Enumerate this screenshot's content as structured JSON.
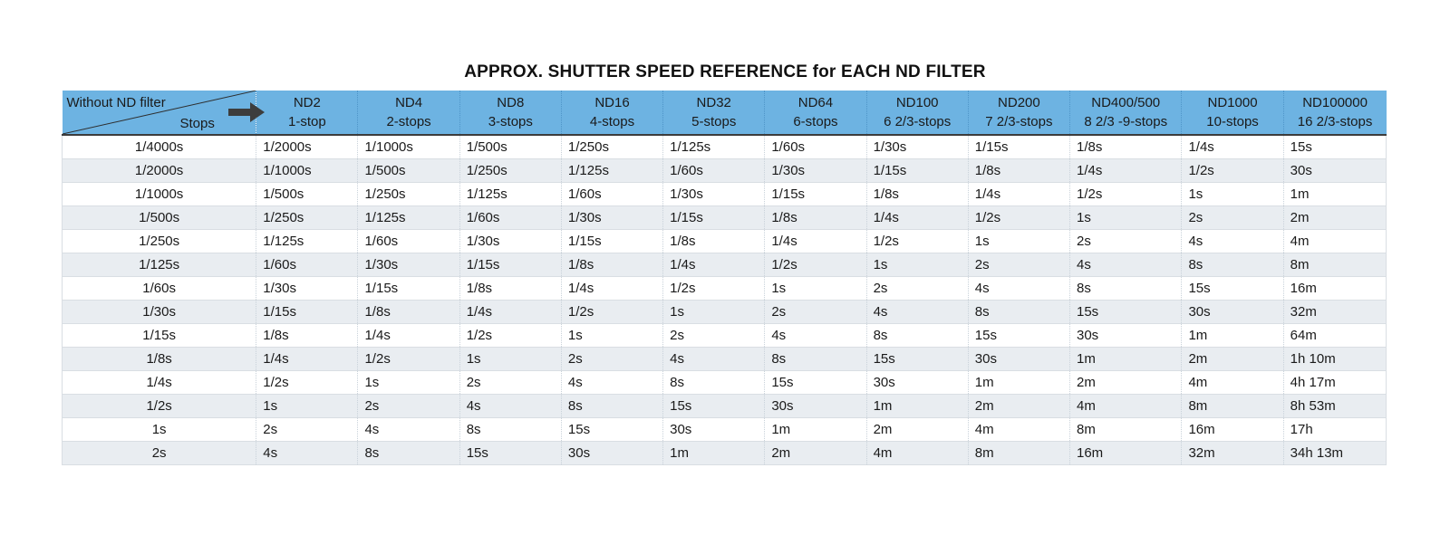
{
  "title": "APPROX. SHUTTER SPEED REFERENCE for EACH ND FILTER",
  "colors": {
    "header_background": "#6db3e2",
    "stripe_background": "#e9edf1",
    "arrow": "#3d3d3d"
  },
  "header": {
    "corner_top": "Without ND filter",
    "corner_bottom": "Stops",
    "corner_icon": "right-arrow-icon",
    "filters": [
      {
        "name": "ND2",
        "stops": "1-stop"
      },
      {
        "name": "ND4",
        "stops": "2-stops"
      },
      {
        "name": "ND8",
        "stops": "3-stops"
      },
      {
        "name": "ND16",
        "stops": "4-stops"
      },
      {
        "name": "ND32",
        "stops": "5-stops"
      },
      {
        "name": "ND64",
        "stops": "6-stops"
      },
      {
        "name": "ND100",
        "stops": "6 2/3-stops"
      },
      {
        "name": "ND200",
        "stops": "7 2/3-stops"
      },
      {
        "name": "ND400/500",
        "stops": "8 2/3 -9-stops"
      },
      {
        "name": "ND1000",
        "stops": "10-stops"
      },
      {
        "name": "ND100000",
        "stops": "16 2/3-stops"
      }
    ]
  },
  "rows": [
    [
      "1/4000s",
      "1/2000s",
      "1/1000s",
      "1/500s",
      "1/250s",
      "1/125s",
      "1/60s",
      "1/30s",
      "1/15s",
      "1/8s",
      "1/4s",
      "15s"
    ],
    [
      "1/2000s",
      "1/1000s",
      "1/500s",
      "1/250s",
      "1/125s",
      "1/60s",
      "1/30s",
      "1/15s",
      "1/8s",
      "1/4s",
      "1/2s",
      "30s"
    ],
    [
      "1/1000s",
      "1/500s",
      "1/250s",
      "1/125s",
      "1/60s",
      "1/30s",
      "1/15s",
      "1/8s",
      "1/4s",
      "1/2s",
      "1s",
      "1m"
    ],
    [
      "1/500s",
      "1/250s",
      "1/125s",
      "1/60s",
      "1/30s",
      "1/15s",
      "1/8s",
      "1/4s",
      "1/2s",
      "1s",
      "2s",
      "2m"
    ],
    [
      "1/250s",
      "1/125s",
      "1/60s",
      "1/30s",
      "1/15s",
      "1/8s",
      "1/4s",
      "1/2s",
      "1s",
      "2s",
      "4s",
      "4m"
    ],
    [
      "1/125s",
      "1/60s",
      "1/30s",
      "1/15s",
      "1/8s",
      "1/4s",
      "1/2s",
      "1s",
      "2s",
      "4s",
      "8s",
      "8m"
    ],
    [
      "1/60s",
      "1/30s",
      "1/15s",
      "1/8s",
      "1/4s",
      "1/2s",
      "1s",
      "2s",
      "4s",
      "8s",
      "15s",
      "16m"
    ],
    [
      "1/30s",
      "1/15s",
      "1/8s",
      "1/4s",
      "1/2s",
      "1s",
      "2s",
      "4s",
      "8s",
      "15s",
      "30s",
      "32m"
    ],
    [
      "1/15s",
      "1/8s",
      "1/4s",
      "1/2s",
      "1s",
      "2s",
      "4s",
      "8s",
      "15s",
      "30s",
      "1m",
      "64m"
    ],
    [
      "1/8s",
      "1/4s",
      "1/2s",
      "1s",
      "2s",
      "4s",
      "8s",
      "15s",
      "30s",
      "1m",
      "2m",
      "1h 10m"
    ],
    [
      "1/4s",
      "1/2s",
      "1s",
      "2s",
      "4s",
      "8s",
      "15s",
      "30s",
      "1m",
      "2m",
      "4m",
      "4h 17m"
    ],
    [
      "1/2s",
      "1s",
      "2s",
      "4s",
      "8s",
      "15s",
      "30s",
      "1m",
      "2m",
      "4m",
      "8m",
      "8h 53m"
    ],
    [
      "1s",
      "2s",
      "4s",
      "8s",
      "15s",
      "30s",
      "1m",
      "2m",
      "4m",
      "8m",
      "16m",
      "17h"
    ],
    [
      "2s",
      "4s",
      "8s",
      "15s",
      "30s",
      "1m",
      "2m",
      "4m",
      "8m",
      "16m",
      "32m",
      "34h 13m"
    ]
  ]
}
